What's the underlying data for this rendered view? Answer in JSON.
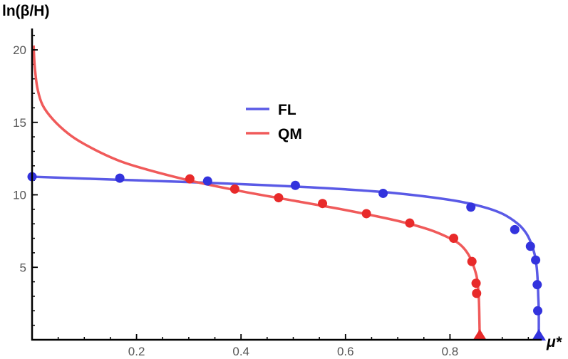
{
  "chart_data": {
    "type": "line",
    "ylabel": "ln(β/H)",
    "xlabel": "μ*",
    "xlim": [
      0,
      0.985
    ],
    "ylim": [
      0,
      21.0
    ],
    "x_ticks": [
      {
        "value": 0.2,
        "label": "0.2"
      },
      {
        "value": 0.4,
        "label": "0.4"
      },
      {
        "value": 0.6,
        "label": "0.6"
      },
      {
        "value": 0.8,
        "label": "0.8"
      }
    ],
    "y_ticks": [
      {
        "value": 5,
        "label": "5"
      },
      {
        "value": 10,
        "label": "10"
      },
      {
        "value": 15,
        "label": "15"
      },
      {
        "value": 20,
        "label": "20"
      }
    ],
    "x_minor_step": 0.05,
    "y_minor_step": 1,
    "legend": {
      "position": "center"
    },
    "series": [
      {
        "name": "FL",
        "color": "#3333dd",
        "curve_color": "#5a5ae6",
        "curve": [
          [
            0.0,
            11.25
          ],
          [
            0.1,
            11.12
          ],
          [
            0.2,
            11.0
          ],
          [
            0.3,
            10.88
          ],
          [
            0.4,
            10.74
          ],
          [
            0.5,
            10.58
          ],
          [
            0.6,
            10.38
          ],
          [
            0.7,
            10.1
          ],
          [
            0.8,
            9.65
          ],
          [
            0.86,
            9.2
          ],
          [
            0.9,
            8.7
          ],
          [
            0.93,
            8.0
          ],
          [
            0.945,
            7.4
          ],
          [
            0.955,
            6.7
          ],
          [
            0.962,
            5.9
          ],
          [
            0.966,
            5.0
          ],
          [
            0.968,
            4.0
          ],
          [
            0.969,
            3.0
          ],
          [
            0.97,
            2.0
          ],
          [
            0.97,
            0.0
          ]
        ],
        "points": [
          [
            0.0,
            11.25
          ],
          [
            0.168,
            11.15
          ],
          [
            0.336,
            10.95
          ],
          [
            0.504,
            10.65
          ],
          [
            0.672,
            10.1
          ],
          [
            0.84,
            9.15
          ],
          [
            0.924,
            7.6
          ],
          [
            0.954,
            6.45
          ],
          [
            0.964,
            5.5
          ],
          [
            0.967,
            3.8
          ],
          [
            0.968,
            2.0
          ]
        ],
        "marker": {
          "x": 0.97,
          "y": 0
        }
      },
      {
        "name": "QM",
        "color": "#e82a2a",
        "curve_color": "#f05a5a",
        "curve": [
          [
            0.003,
            20.3
          ],
          [
            0.005,
            18.9
          ],
          [
            0.01,
            17.4
          ],
          [
            0.02,
            16.2
          ],
          [
            0.04,
            15.2
          ],
          [
            0.07,
            14.2
          ],
          [
            0.1,
            13.5
          ],
          [
            0.15,
            12.6
          ],
          [
            0.2,
            11.95
          ],
          [
            0.3,
            11.0
          ],
          [
            0.4,
            10.25
          ],
          [
            0.5,
            9.6
          ],
          [
            0.6,
            8.95
          ],
          [
            0.7,
            8.2
          ],
          [
            0.76,
            7.6
          ],
          [
            0.8,
            7.0
          ],
          [
            0.82,
            6.55
          ],
          [
            0.835,
            5.9
          ],
          [
            0.845,
            5.1
          ],
          [
            0.852,
            4.2
          ],
          [
            0.855,
            3.0
          ],
          [
            0.856,
            2.0
          ],
          [
            0.857,
            0.0
          ]
        ],
        "points": [
          [
            0.302,
            11.1
          ],
          [
            0.388,
            10.4
          ],
          [
            0.472,
            9.8
          ],
          [
            0.556,
            9.4
          ],
          [
            0.64,
            8.7
          ],
          [
            0.723,
            8.05
          ],
          [
            0.807,
            7.0
          ],
          [
            0.842,
            5.4
          ],
          [
            0.85,
            3.9
          ],
          [
            0.851,
            3.2
          ]
        ],
        "marker": {
          "x": 0.857,
          "y": 0
        }
      }
    ]
  }
}
